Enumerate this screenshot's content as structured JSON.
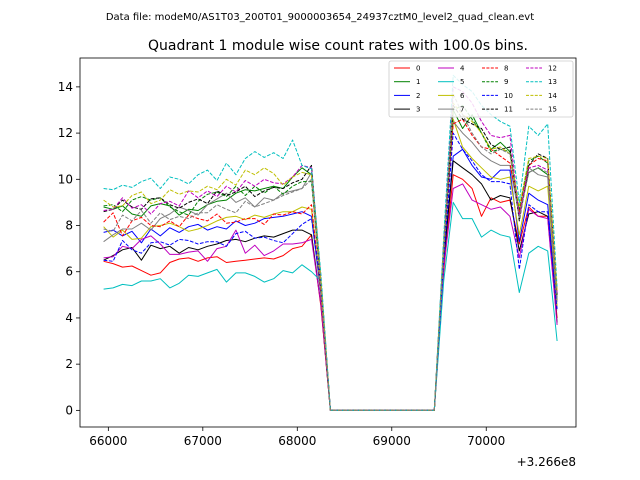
{
  "chart_data": {
    "type": "line",
    "suptitle": "Data file: modeM0/AS1T03_200T01_9000003654_24937cztM0_level2_quad_clean.evt",
    "title": "Quadrant 1 module wise count rates with 100.0s bins.",
    "xlabel": "",
    "ylabel": "",
    "offset_text": "+3.266e8",
    "xlim": [
      65700,
      70950
    ],
    "ylim": [
      -0.72,
      15.25
    ],
    "xticks": [
      66000,
      67000,
      68000,
      69000,
      70000
    ],
    "xtick_labels": [
      "66000",
      "67000",
      "68000",
      "69000",
      "70000"
    ],
    "yticks": [
      0,
      2,
      4,
      6,
      8,
      10,
      12,
      14
    ],
    "ytick_labels": [
      "0",
      "2",
      "4",
      "6",
      "8",
      "10",
      "12",
      "14"
    ],
    "grid": false,
    "legend_position": "top-right",
    "legend_columns": 4,
    "x": [
      65950,
      66050,
      66150,
      66250,
      66350,
      66450,
      66550,
      66650,
      66750,
      66850,
      66950,
      67050,
      67150,
      67250,
      67350,
      67450,
      67550,
      67650,
      67750,
      67850,
      67950,
      68050,
      68150,
      68250,
      68350,
      68450,
      68550,
      68650,
      68750,
      68850,
      68950,
      69050,
      69150,
      69250,
      69350,
      69450,
      69550,
      69650,
      69750,
      69850,
      69950,
      70050,
      70150,
      70250,
      70350,
      70450,
      70550,
      70650,
      70750
    ],
    "series": [
      {
        "name": "0",
        "color": "#ff0000",
        "dash": "solid",
        "values": [
          6.45,
          6.35,
          6.2,
          6.25,
          6.05,
          5.85,
          5.95,
          6.4,
          6.55,
          6.6,
          6.45,
          6.6,
          6.65,
          6.4,
          6.45,
          6.5,
          6.55,
          6.6,
          6.55,
          6.7,
          7.0,
          7.1,
          7.6,
          4.5,
          0,
          0,
          0,
          0,
          0,
          0,
          0,
          0,
          0,
          0,
          0,
          0,
          6.0,
          10.2,
          10.0,
          9.6,
          8.4,
          9.2,
          9.0,
          9.1,
          7.2,
          8.8,
          8.4,
          8.4,
          4.0
        ]
      },
      {
        "name": "1",
        "color": "#008000",
        "dash": "solid",
        "values": [
          8.8,
          8.7,
          8.85,
          8.5,
          8.4,
          8.85,
          8.95,
          8.85,
          8.45,
          8.7,
          8.65,
          8.9,
          9.05,
          9.1,
          9.4,
          9.55,
          9.5,
          9.6,
          9.7,
          9.6,
          10.1,
          10.5,
          10.2,
          5.5,
          0,
          0,
          0,
          0,
          0,
          0,
          0,
          0,
          0,
          0,
          0,
          0,
          7.0,
          13.0,
          12.2,
          12.8,
          12.0,
          11.3,
          11.6,
          11.2,
          8.5,
          10.3,
          10.5,
          10.2,
          4.8
        ]
      },
      {
        "name": "2",
        "color": "#0000ff",
        "dash": "solid",
        "values": [
          7.7,
          7.8,
          7.55,
          7.75,
          7.25,
          7.85,
          7.55,
          7.9,
          7.7,
          7.95,
          8.05,
          7.8,
          7.95,
          7.85,
          8.2,
          8.0,
          8.1,
          8.3,
          8.35,
          8.4,
          8.5,
          8.6,
          8.4,
          5.0,
          0,
          0,
          0,
          0,
          0,
          0,
          0,
          0,
          0,
          0,
          0,
          0,
          6.5,
          11.0,
          11.3,
          10.6,
          10.1,
          10.0,
          10.4,
          10.4,
          7.3,
          9.4,
          9.1,
          8.9,
          4.4
        ]
      },
      {
        "name": "3",
        "color": "#000000",
        "dash": "solid",
        "values": [
          6.5,
          6.7,
          6.95,
          7.05,
          6.5,
          7.15,
          7.0,
          7.1,
          6.8,
          7.05,
          6.95,
          7.1,
          7.2,
          7.35,
          7.4,
          7.3,
          7.45,
          7.55,
          7.5,
          7.65,
          7.8,
          7.8,
          7.6,
          4.6,
          0,
          0,
          0,
          0,
          0,
          0,
          0,
          0,
          0,
          0,
          0,
          0,
          6.4,
          10.8,
          10.5,
          10.2,
          9.8,
          9.1,
          9.3,
          9.2,
          6.9,
          8.5,
          8.6,
          8.4,
          3.8
        ]
      },
      {
        "name": "4",
        "color": "#bf00bf",
        "dash": "solid",
        "values": [
          6.6,
          6.65,
          7.1,
          7.0,
          7.4,
          7.55,
          7.2,
          6.75,
          6.75,
          6.85,
          6.9,
          6.45,
          7.0,
          7.1,
          7.8,
          6.8,
          7.15,
          6.7,
          6.9,
          7.2,
          7.2,
          7.25,
          7.4,
          4.6,
          0,
          0,
          0,
          0,
          0,
          0,
          0,
          0,
          0,
          0,
          0,
          0,
          6.2,
          9.6,
          9.8,
          9.1,
          8.9,
          8.7,
          8.8,
          8.4,
          6.6,
          8.7,
          8.4,
          8.3,
          3.7
        ]
      },
      {
        "name": "5",
        "color": "#00bfbf",
        "dash": "solid",
        "values": [
          5.25,
          5.3,
          5.45,
          5.4,
          5.6,
          5.6,
          5.7,
          5.3,
          5.5,
          5.85,
          5.8,
          5.95,
          6.1,
          5.55,
          5.95,
          5.95,
          5.8,
          5.55,
          5.7,
          6.05,
          5.95,
          6.3,
          6.0,
          5.6,
          0,
          0,
          0,
          0,
          0,
          0,
          0,
          0,
          0,
          0,
          0,
          0,
          5.6,
          9.0,
          8.3,
          8.3,
          7.5,
          7.8,
          7.6,
          7.5,
          5.1,
          6.8,
          7.1,
          6.9,
          3.0
        ]
      },
      {
        "name": "6",
        "color": "#bfbf00",
        "dash": "solid",
        "values": [
          7.95,
          7.5,
          7.8,
          7.4,
          7.45,
          7.95,
          8.0,
          8.1,
          7.95,
          7.75,
          7.85,
          8.0,
          8.2,
          8.35,
          8.4,
          8.25,
          8.45,
          8.35,
          8.5,
          8.6,
          8.6,
          8.8,
          8.7,
          5.1,
          0,
          0,
          0,
          0,
          0,
          0,
          0,
          0,
          0,
          0,
          0,
          0,
          6.7,
          12.6,
          11.4,
          10.9,
          10.5,
          10.1,
          10.0,
          10.1,
          7.6,
          9.7,
          9.5,
          9.7,
          4.5
        ]
      },
      {
        "name": "7",
        "color": "#808080",
        "dash": "solid",
        "values": [
          7.3,
          7.6,
          7.85,
          7.85,
          8.1,
          7.8,
          8.3,
          8.5,
          8.8,
          8.65,
          8.45,
          8.9,
          9.15,
          9.4,
          9.0,
          9.2,
          8.8,
          9.2,
          9.1,
          9.4,
          9.5,
          9.6,
          10.3,
          5.6,
          0,
          0,
          0,
          0,
          0,
          0,
          0,
          0,
          0,
          0,
          0,
          0,
          7.0,
          12.5,
          12.0,
          11.6,
          11.1,
          10.8,
          10.6,
          10.6,
          8.4,
          10.5,
          10.2,
          10.1,
          4.7
        ]
      },
      {
        "name": "8",
        "color": "#ff0000",
        "dash": "dashed",
        "values": [
          8.15,
          8.55,
          7.55,
          8.2,
          8.35,
          8.0,
          7.95,
          8.2,
          7.95,
          8.45,
          8.3,
          8.2,
          8.5,
          8.1,
          8.15,
          8.3,
          8.3,
          8.05,
          8.5,
          8.45,
          8.6,
          8.5,
          8.9,
          5.1,
          0,
          0,
          0,
          0,
          0,
          0,
          0,
          0,
          0,
          0,
          0,
          0,
          6.9,
          12.4,
          12.6,
          11.9,
          11.4,
          11.3,
          11.0,
          10.7,
          8.6,
          10.6,
          10.9,
          10.8,
          5.0
        ]
      },
      {
        "name": "9",
        "color": "#008000",
        "dash": "dashed",
        "values": [
          8.85,
          8.9,
          8.6,
          9.1,
          9.25,
          9.1,
          9.2,
          8.8,
          8.6,
          8.45,
          9.05,
          9.35,
          9.45,
          9.25,
          9.7,
          9.3,
          9.7,
          9.4,
          9.7,
          9.35,
          9.7,
          9.9,
          9.9,
          5.4,
          0,
          0,
          0,
          0,
          0,
          0,
          0,
          0,
          0,
          0,
          0,
          0,
          7.1,
          13.0,
          13.2,
          12.6,
          12.0,
          11.2,
          11.3,
          11.2,
          8.7,
          10.8,
          11.0,
          10.7,
          4.9
        ]
      },
      {
        "name": "10",
        "color": "#0000ff",
        "dash": "dashed",
        "values": [
          6.5,
          6.45,
          7.35,
          6.95,
          6.8,
          7.25,
          7.3,
          7.15,
          7.4,
          7.35,
          7.2,
          7.3,
          7.3,
          7.1,
          7.65,
          7.75,
          7.45,
          7.5,
          7.35,
          7.25,
          7.65,
          8.05,
          8.3,
          5.4,
          0,
          0,
          0,
          0,
          0,
          0,
          0,
          0,
          0,
          0,
          0,
          0,
          6.5,
          12.0,
          11.3,
          10.8,
          10.2,
          9.9,
          9.9,
          9.8,
          6.1,
          8.9,
          8.6,
          8.6,
          4.3
        ]
      },
      {
        "name": "11",
        "color": "#000000",
        "dash": "dashed",
        "values": [
          8.6,
          8.7,
          9.1,
          8.8,
          8.7,
          9.15,
          9.2,
          8.9,
          8.75,
          9.0,
          9.15,
          8.95,
          9.5,
          9.3,
          9.45,
          9.7,
          9.25,
          9.5,
          9.65,
          9.6,
          9.85,
          10.0,
          10.6,
          5.6,
          0,
          0,
          0,
          0,
          0,
          0,
          0,
          0,
          0,
          0,
          0,
          0,
          7.2,
          13.2,
          12.6,
          12.4,
          12.2,
          11.5,
          11.3,
          11.4,
          8.2,
          10.6,
          11.1,
          10.9,
          5.0
        ]
      },
      {
        "name": "12",
        "color": "#bf00bf",
        "dash": "dashed",
        "values": [
          8.65,
          8.7,
          9.2,
          8.75,
          8.9,
          8.5,
          8.95,
          9.05,
          8.85,
          9.5,
          9.2,
          9.5,
          9.25,
          9.7,
          9.45,
          9.95,
          9.7,
          10.0,
          9.85,
          9.8,
          10.1,
          10.6,
          10.5,
          5.7,
          0,
          0,
          0,
          0,
          0,
          0,
          0,
          0,
          0,
          0,
          0,
          0,
          7.2,
          14.0,
          13.8,
          13.3,
          12.5,
          11.9,
          11.8,
          11.9,
          8.4,
          10.5,
          10.6,
          10.4,
          5.1
        ]
      },
      {
        "name": "13",
        "color": "#00bfbf",
        "dash": "dashed",
        "values": [
          9.6,
          9.55,
          9.75,
          9.65,
          9.9,
          10.05,
          9.6,
          10.1,
          10.0,
          9.8,
          10.2,
          10.4,
          9.95,
          10.7,
          10.2,
          10.9,
          11.2,
          10.95,
          11.15,
          10.9,
          11.7,
          10.6,
          10.45,
          5.9,
          0,
          0,
          0,
          0,
          0,
          0,
          0,
          0,
          0,
          0,
          0,
          0,
          7.5,
          14.5,
          14.1,
          13.8,
          13.2,
          12.8,
          12.5,
          12.3,
          9.0,
          12.3,
          11.9,
          12.4,
          5.3
        ]
      },
      {
        "name": "14",
        "color": "#bfbf00",
        "dash": "dashed",
        "values": [
          9.1,
          8.8,
          8.85,
          9.3,
          9.45,
          8.95,
          9.1,
          9.55,
          9.35,
          9.5,
          9.45,
          9.7,
          9.55,
          10.0,
          9.75,
          10.4,
          10.2,
          10.5,
          10.25,
          9.75,
          10.1,
          10.3,
          10.2,
          5.6,
          0,
          0,
          0,
          0,
          0,
          0,
          0,
          0,
          0,
          0,
          0,
          0,
          7.1,
          13.3,
          12.8,
          12.5,
          12.0,
          11.3,
          11.4,
          11.1,
          8.8,
          10.9,
          11.0,
          10.9,
          5.2
        ]
      },
      {
        "name": "15",
        "color": "#808080",
        "dash": "dashed",
        "values": [
          7.85,
          7.75,
          8.45,
          8.2,
          8.65,
          8.1,
          8.55,
          8.25,
          8.4,
          8.3,
          8.55,
          8.55,
          8.9,
          8.7,
          8.55,
          9.05,
          8.8,
          8.95,
          9.1,
          9.3,
          9.45,
          9.6,
          10.0,
          5.2,
          0,
          0,
          0,
          0,
          0,
          0,
          0,
          0,
          0,
          0,
          0,
          0,
          6.8,
          13.7,
          12.8,
          12.0,
          11.4,
          11.1,
          11.3,
          11.1,
          8.3,
          10.3,
          10.5,
          10.3,
          4.8
        ]
      }
    ]
  }
}
